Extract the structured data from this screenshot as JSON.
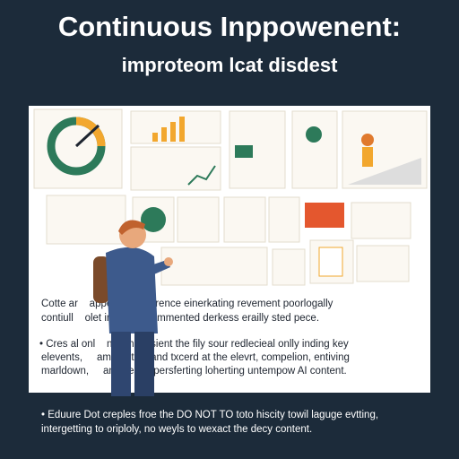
{
  "header": {
    "title": "Continuous Inppowenent:",
    "subtitle": "improteom lcat disdest"
  },
  "panel": {
    "paragraphs": [
      [
        "Cotte ar    appecent repprence einerkating revement poorlogally",
        "contiull    olet in piocs pormmented derkess erailly sted pece."
      ],
      [
        "• Cres al onl    nst impossient the fily sour redlecieal onlly inding key",
        "elevents,     ampmotion and txcerd at the elevrt, compelion, entiving",
        "marldown,     any besed persferting loherting untempow AI content."
      ]
    ]
  },
  "footer": {
    "lines": [
      "• Eduure Dot creples froe the DO NOT TO toto hiscity towil laguge evtting,",
      "intergetting to oriploly, no weyls to wexact the decy content."
    ]
  }
}
